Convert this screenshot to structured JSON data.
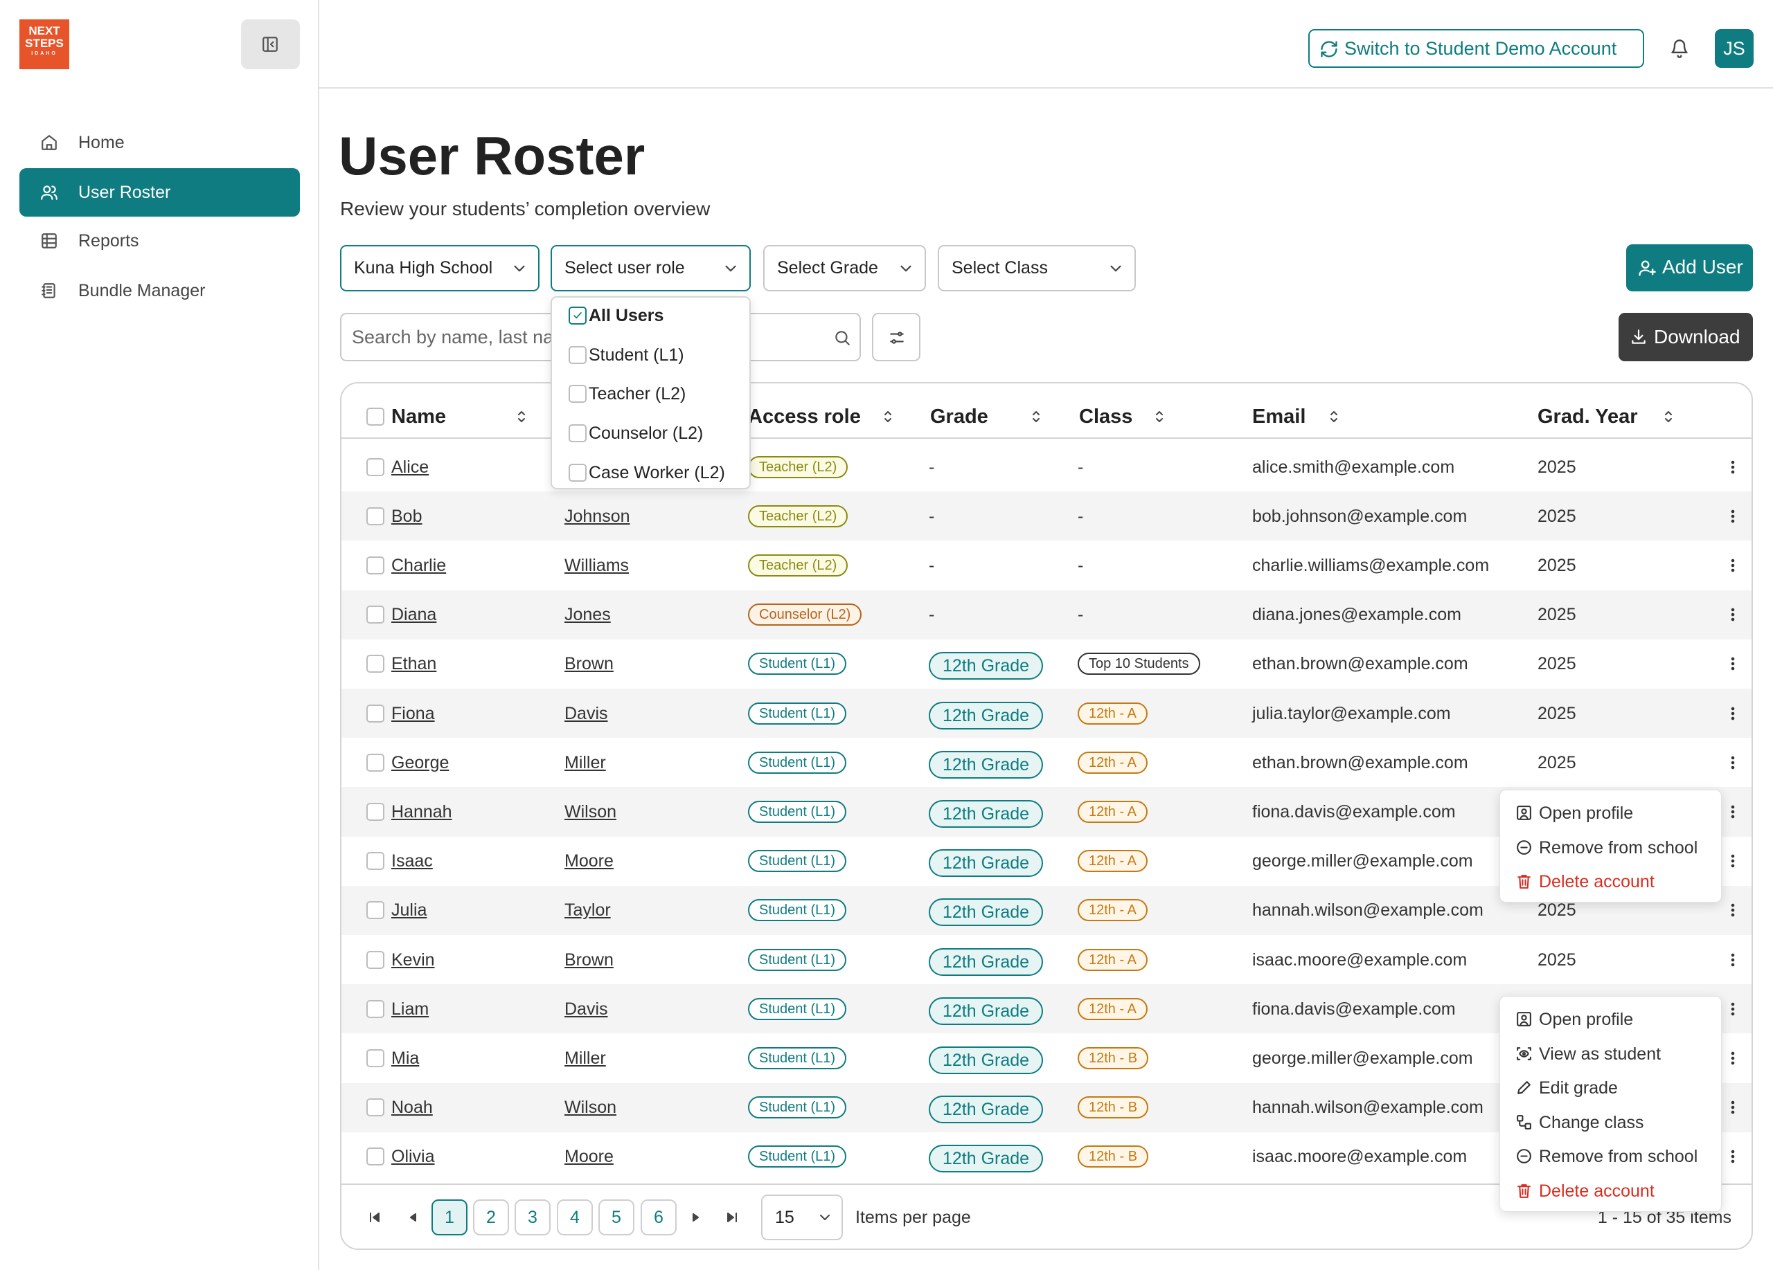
{
  "sidebar": {
    "logo": [
      "NEXT",
      "STEPS",
      "IDAHO"
    ],
    "nav": [
      "Home",
      "User Roster",
      "Reports",
      "Bundle Manager"
    ],
    "active": 1
  },
  "header": {
    "switch_button": "Switch to Student Demo Account",
    "avatar": "JS"
  },
  "page": {
    "title": "User Roster",
    "subtitle": "Review your students’ completion overview"
  },
  "filters": {
    "school": "Kuna High School",
    "role": "Select user role",
    "grade": "Select Grade",
    "class": "Select Class",
    "search_placeholder": "Search by name, last name"
  },
  "buttons": {
    "add_user": "Add User",
    "download": "Download"
  },
  "role_dropdown": [
    {
      "label": "All Users",
      "checked": true
    },
    {
      "label": "Student (L1)",
      "checked": false
    },
    {
      "label": "Teacher (L2)",
      "checked": false
    },
    {
      "label": "Counselor (L2)",
      "checked": false
    },
    {
      "label": "Case Worker (L2)",
      "checked": false
    }
  ],
  "table": {
    "columns": [
      "Name",
      "Access role",
      "Grade",
      "Class",
      "Email",
      "Grad. Year"
    ],
    "rows": [
      {
        "first": "Alice",
        "last": null,
        "role": {
          "label": "Teacher (L2)",
          "color": "#8a8a12",
          "bg": "#fbfbe4"
        },
        "grade": "-",
        "class": "-",
        "email": "alice.smith@example.com",
        "year": "2025"
      },
      {
        "first": "Bob",
        "last": "Johnson",
        "role": {
          "label": "Teacher (L2)",
          "color": "#8a8a12",
          "bg": "#fbfbe4"
        },
        "grade": "-",
        "class": "-",
        "email": "bob.johnson@example.com",
        "year": "2025"
      },
      {
        "first": "Charlie",
        "last": "Williams",
        "role": {
          "label": "Teacher (L2)",
          "color": "#8a8a12",
          "bg": "#fbfbe4"
        },
        "grade": "-",
        "class": "-",
        "email": "charlie.williams@example.com",
        "year": "2025"
      },
      {
        "first": "Diana",
        "last": "Jones",
        "role": {
          "label": "Counselor (L2)",
          "color": "#b5651d",
          "bg": "#fdf2e6"
        },
        "grade": "-",
        "class": "-",
        "email": "diana.jones@example.com",
        "year": "2025"
      },
      {
        "first": "Ethan",
        "last": "Brown",
        "role": {
          "label": "Student (L1)",
          "color": "#0e7c80",
          "bg": "#ffffff"
        },
        "grade": {
          "label": "12th Grade",
          "color": "#0e7c80",
          "bg": "#e6f4f4"
        },
        "class": {
          "label": "Top 10 Students",
          "color": "#333333",
          "bg": "#ffffff"
        },
        "email": "ethan.brown@example.com",
        "year": "2025"
      },
      {
        "first": "Fiona",
        "last": "Davis",
        "role": {
          "label": "Student (L1)",
          "color": "#0e7c80",
          "bg": "#ffffff"
        },
        "grade": {
          "label": "12th Grade",
          "color": "#0e7c80",
          "bg": "#e6f4f4"
        },
        "class": {
          "label": "12th - A",
          "color": "#c47a12",
          "bg": "#fff6e8"
        },
        "email": "julia.taylor@example.com",
        "year": "2025"
      },
      {
        "first": "George",
        "last": "Miller",
        "role": {
          "label": "Student (L1)",
          "color": "#0e7c80",
          "bg": "#ffffff"
        },
        "grade": {
          "label": "12th Grade",
          "color": "#0e7c80",
          "bg": "#e6f4f4"
        },
        "class": {
          "label": "12th - A",
          "color": "#c47a12",
          "bg": "#fff6e8"
        },
        "email": "ethan.brown@example.com",
        "year": "2025"
      },
      {
        "first": "Hannah",
        "last": "Wilson",
        "role": {
          "label": "Student (L1)",
          "color": "#0e7c80",
          "bg": "#ffffff"
        },
        "grade": {
          "label": "12th Grade",
          "color": "#0e7c80",
          "bg": "#e6f4f4"
        },
        "class": {
          "label": "12th - A",
          "color": "#c47a12",
          "bg": "#fff6e8"
        },
        "email": "fiona.davis@example.com",
        "year": null
      },
      {
        "first": "Isaac",
        "last": "Moore",
        "role": {
          "label": "Student (L1)",
          "color": "#0e7c80",
          "bg": "#ffffff"
        },
        "grade": {
          "label": "12th Grade",
          "color": "#0e7c80",
          "bg": "#e6f4f4"
        },
        "class": {
          "label": "12th - A",
          "color": "#c47a12",
          "bg": "#fff6e8"
        },
        "email": "george.miller@example.com",
        "year": null
      },
      {
        "first": "Julia",
        "last": "Taylor",
        "role": {
          "label": "Student (L1)",
          "color": "#0e7c80",
          "bg": "#ffffff"
        },
        "grade": {
          "label": "12th Grade",
          "color": "#0e7c80",
          "bg": "#e6f4f4"
        },
        "class": {
          "label": "12th - A",
          "color": "#c47a12",
          "bg": "#fff6e8"
        },
        "email": "hannah.wilson@example.com",
        "year": "2025"
      },
      {
        "first": "Kevin",
        "last": "Brown",
        "role": {
          "label": "Student (L1)",
          "color": "#0e7c80",
          "bg": "#ffffff"
        },
        "grade": {
          "label": "12th Grade",
          "color": "#0e7c80",
          "bg": "#e6f4f4"
        },
        "class": {
          "label": "12th - A",
          "color": "#c47a12",
          "bg": "#fff6e8"
        },
        "email": "isaac.moore@example.com",
        "year": "2025"
      },
      {
        "first": "Liam",
        "last": "Davis",
        "role": {
          "label": "Student (L1)",
          "color": "#0e7c80",
          "bg": "#ffffff"
        },
        "grade": {
          "label": "12th Grade",
          "color": "#0e7c80",
          "bg": "#e6f4f4"
        },
        "class": {
          "label": "12th - A",
          "color": "#c47a12",
          "bg": "#fff6e8"
        },
        "email": "fiona.davis@example.com",
        "year": null
      },
      {
        "first": "Mia",
        "last": "Miller",
        "role": {
          "label": "Student (L1)",
          "color": "#0e7c80",
          "bg": "#ffffff"
        },
        "grade": {
          "label": "12th Grade",
          "color": "#0e7c80",
          "bg": "#e6f4f4"
        },
        "class": {
          "label": "12th - B",
          "color": "#c47a12",
          "bg": "#fff6e8"
        },
        "email": "george.miller@example.com",
        "year": null
      },
      {
        "first": "Noah",
        "last": "Wilson",
        "role": {
          "label": "Student (L1)",
          "color": "#0e7c80",
          "bg": "#ffffff"
        },
        "grade": {
          "label": "12th Grade",
          "color": "#0e7c80",
          "bg": "#e6f4f4"
        },
        "class": {
          "label": "12th - B",
          "color": "#c47a12",
          "bg": "#fff6e8"
        },
        "email": "hannah.wilson@example.com",
        "year": null
      },
      {
        "first": "Olivia",
        "last": "Moore",
        "role": {
          "label": "Student (L1)",
          "color": "#0e7c80",
          "bg": "#ffffff"
        },
        "grade": {
          "label": "12th Grade",
          "color": "#0e7c80",
          "bg": "#e6f4f4"
        },
        "class": {
          "label": "12th - B",
          "color": "#c47a12",
          "bg": "#fff6e8"
        },
        "email": "isaac.moore@example.com",
        "year": null
      }
    ]
  },
  "row_menus": [
    {
      "row": 7,
      "items": [
        {
          "label": "Open profile",
          "danger": false
        },
        {
          "label": "Remove from school",
          "danger": false
        },
        {
          "label": "Delete account",
          "danger": true
        }
      ]
    },
    {
      "row": 11,
      "items": [
        {
          "label": "Open profile",
          "danger": false
        },
        {
          "label": "View as student",
          "danger": false
        },
        {
          "label": "Edit grade",
          "danger": false
        },
        {
          "label": "Change class",
          "danger": false
        },
        {
          "label": "Remove from school",
          "danger": false
        },
        {
          "label": "Delete account",
          "danger": true
        }
      ]
    }
  ],
  "pagination": {
    "pages": [
      1,
      2,
      3,
      4,
      5,
      6
    ],
    "current": 0,
    "per_page": "15",
    "per_page_label": "Items per page",
    "range": "1 - 15 of 35 items"
  }
}
